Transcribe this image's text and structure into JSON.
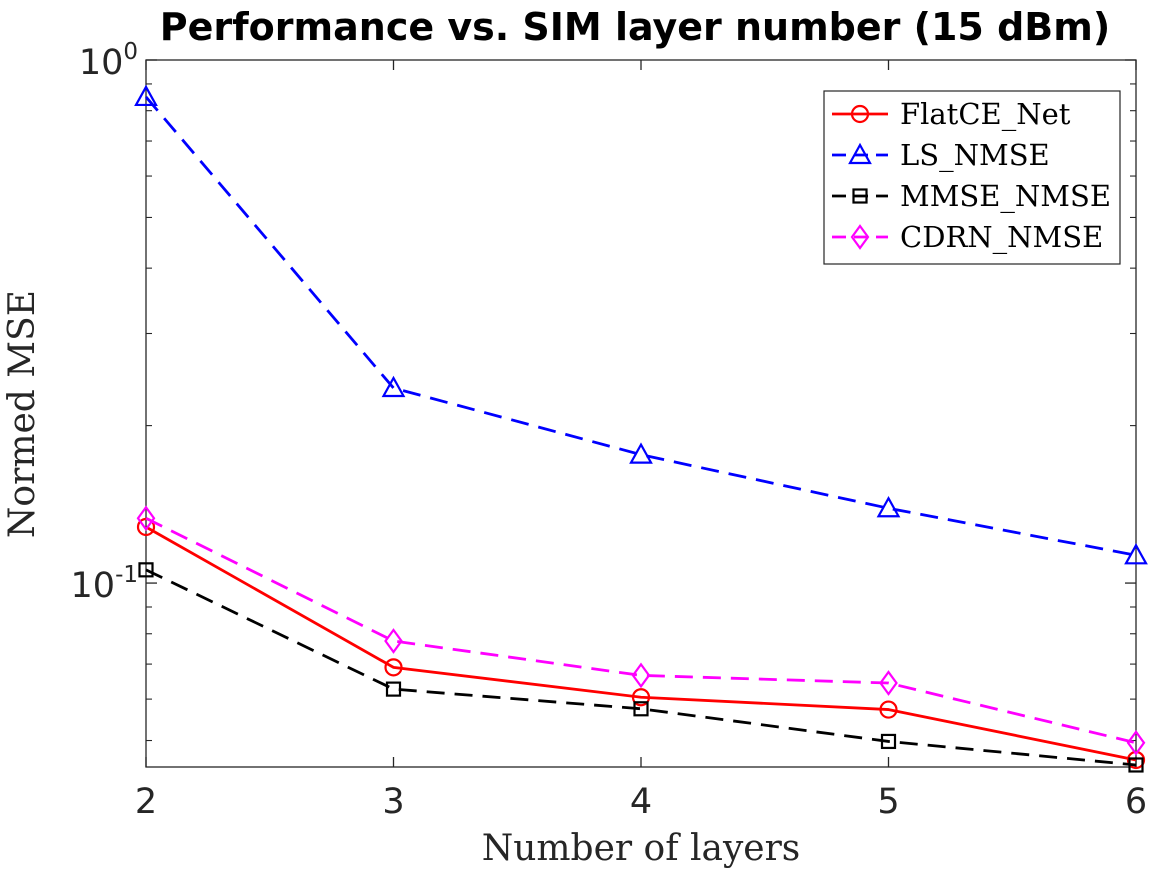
{
  "chart_data": {
    "type": "line",
    "title": "Performance vs. SIM layer number (15 dBm)",
    "xlabel": "Number of layers",
    "ylabel": "Normed MSE",
    "y_scale": "log",
    "xlim": [
      2,
      6
    ],
    "ylim": [
      0.0445,
      1.0
    ],
    "x_ticks": [
      "2",
      "3",
      "4",
      "5",
      "6"
    ],
    "y_ticks": [
      {
        "base": "10",
        "exp": "-1",
        "value": 0.1
      },
      {
        "base": "10",
        "exp": "0",
        "value": 1
      }
    ],
    "grid": false,
    "legend_position": "top-right",
    "x": [
      2,
      3,
      4,
      5,
      6
    ],
    "series": [
      {
        "name": "FlatCE_Net",
        "color": "#ff0000",
        "dash": "solid",
        "marker": "circle",
        "values": [
          0.128,
          0.069,
          0.0605,
          0.0573,
          0.0459
        ]
      },
      {
        "name": "LS_NMSE",
        "color": "#0000ff",
        "dash": "dashed",
        "marker": "triangle",
        "values": [
          0.85,
          0.236,
          0.176,
          0.139,
          0.113
        ]
      },
      {
        "name": "MMSE_NMSE",
        "color": "#000000",
        "dash": "dashed",
        "marker": "square",
        "values": [
          0.106,
          0.0627,
          0.0575,
          0.0498,
          0.0449
        ]
      },
      {
        "name": "CDRN_NMSE",
        "color": "#ff00ff",
        "dash": "dashed",
        "marker": "diamond",
        "values": [
          0.133,
          0.0775,
          0.0666,
          0.0644,
          0.0495
        ]
      }
    ]
  }
}
